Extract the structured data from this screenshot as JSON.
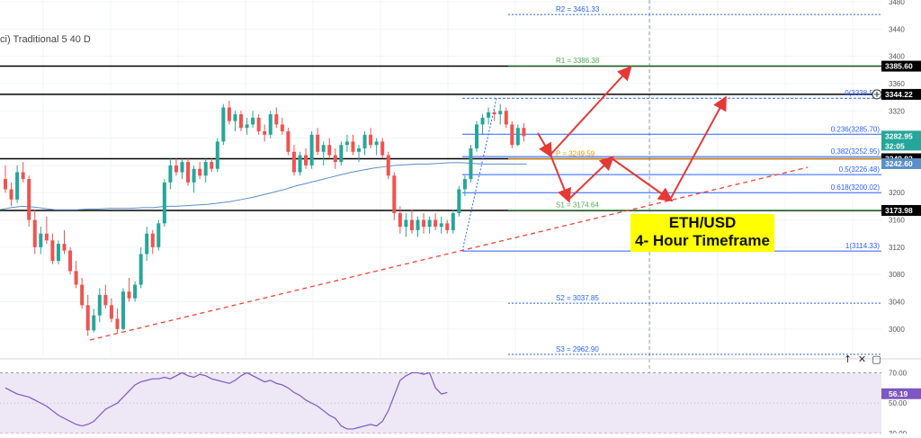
{
  "header": {
    "title_partial": "ci) Traditional 5 40 D"
  },
  "annotation": {
    "line1": "ETH/USD",
    "line2": "4- Hour Timeframe"
  },
  "colors": {
    "bull": "#26a69a",
    "bear": "#ef5350",
    "pivot_r": "#2962ff",
    "pivot_green": "#4caf50",
    "fib": "#2962ff",
    "trend": "#f44336",
    "rsi": "#7e57c2",
    "rsi_bg": "#ede7f6",
    "ma": "#5b8fc7",
    "hline": "#000000"
  },
  "controls": {
    "up_label": "↑",
    "close_label": "✕",
    "collapse_label": "▢"
  },
  "chart_data": {
    "type": "candlestick",
    "y_axis": {
      "range": [
        2980,
        3480
      ],
      "ticks": [
        3000,
        3040,
        3080,
        3120,
        3160,
        3200,
        3240,
        3280,
        3320,
        3360,
        3400,
        3440,
        3480
      ]
    },
    "price_tags": [
      {
        "label": "3385.60",
        "value": 3385.6,
        "color": "#000000"
      },
      {
        "label": "3344.22",
        "value": 3344.22,
        "color": "#000000"
      },
      {
        "label": "3282.95",
        "value": 3282.95,
        "color": "#26a69a",
        "sub": "32:05"
      },
      {
        "label": "3249.83",
        "value": 3249.83,
        "color": "#000000"
      },
      {
        "label": "3242.60",
        "value": 3242.6,
        "color": "#5b8fc7"
      },
      {
        "label": "3173.98",
        "value": 3173.98,
        "color": "#000000"
      }
    ],
    "pivot_levels": [
      {
        "label": "R2 = 3461.33",
        "value": 3461.33,
        "color": "#2962ff",
        "dashed": true
      },
      {
        "label": "R1 = 3386.38",
        "value": 3386.38,
        "color": "#4caf50",
        "dashed": false
      },
      {
        "label": "P = 3249.59",
        "value": 3249.59,
        "color": "#ff9800",
        "dashed": false
      },
      {
        "label": "S1 = 3174.64",
        "value": 3174.64,
        "color": "#4caf50",
        "dashed": false
      },
      {
        "label": "S2 = 3037.85",
        "value": 3037.85,
        "color": "#2962ff",
        "dashed": true
      },
      {
        "label": "S3 = 2962.90",
        "value": 2962.9,
        "color": "#2962ff",
        "dashed": true
      }
    ],
    "fib_levels": [
      {
        "label": "0(3338.53)",
        "value": 3338.53
      },
      {
        "label": "0.236(3285.70)",
        "value": 3285.7
      },
      {
        "label": "0.382(3252.95)",
        "value": 3252.95
      },
      {
        "label": "0.5(3226.48)",
        "value": 3226.48
      },
      {
        "label": "0.618(3200.02)",
        "value": 3200.02
      },
      {
        "label": "1(3114.33)",
        "value": 3114.33
      }
    ],
    "horizontal_lines": [
      3385.6,
      3344.22,
      3249.83,
      3173.98
    ],
    "candles": [
      [
        3220,
        3240,
        3200,
        3205
      ],
      [
        3205,
        3215,
        3180,
        3190
      ],
      [
        3190,
        3240,
        3185,
        3230
      ],
      [
        3230,
        3245,
        3215,
        3220
      ],
      [
        3220,
        3225,
        3150,
        3160
      ],
      [
        3160,
        3175,
        3110,
        3120
      ],
      [
        3120,
        3150,
        3110,
        3140
      ],
      [
        3140,
        3165,
        3125,
        3130
      ],
      [
        3130,
        3140,
        3095,
        3100
      ],
      [
        3100,
        3130,
        3095,
        3125
      ],
      [
        3125,
        3145,
        3110,
        3115
      ],
      [
        3115,
        3120,
        3080,
        3085
      ],
      [
        3085,
        3100,
        3060,
        3065
      ],
      [
        3065,
        3075,
        3030,
        3035
      ],
      [
        3035,
        3050,
        2990,
        2998
      ],
      [
        2998,
        3030,
        2995,
        3020
      ],
      [
        3020,
        3060,
        3010,
        3050
      ],
      [
        3050,
        3065,
        3030,
        3035
      ],
      [
        3035,
        3045,
        3010,
        3015
      ],
      [
        3015,
        3030,
        2995,
        3000
      ],
      [
        3000,
        3060,
        2998,
        3055
      ],
      [
        3055,
        3075,
        3040,
        3045
      ],
      [
        3045,
        3070,
        3040,
        3065
      ],
      [
        3065,
        3120,
        3060,
        3110
      ],
      [
        3110,
        3150,
        3100,
        3140
      ],
      [
        3140,
        3145,
        3110,
        3120
      ],
      [
        3120,
        3160,
        3115,
        3155
      ],
      [
        3155,
        3220,
        3150,
        3215
      ],
      [
        3215,
        3250,
        3205,
        3240
      ],
      [
        3240,
        3250,
        3225,
        3230
      ],
      [
        3230,
        3250,
        3220,
        3245
      ],
      [
        3245,
        3250,
        3210,
        3215
      ],
      [
        3215,
        3240,
        3200,
        3235
      ],
      [
        3235,
        3245,
        3220,
        3225
      ],
      [
        3225,
        3250,
        3215,
        3245
      ],
      [
        3245,
        3250,
        3230,
        3235
      ],
      [
        3235,
        3280,
        3230,
        3275
      ],
      [
        3275,
        3330,
        3270,
        3325
      ],
      [
        3325,
        3335,
        3300,
        3305
      ],
      [
        3305,
        3320,
        3290,
        3315
      ],
      [
        3315,
        3320,
        3290,
        3295
      ],
      [
        3295,
        3310,
        3285,
        3300
      ],
      [
        3300,
        3320,
        3295,
        3310
      ],
      [
        3310,
        3315,
        3285,
        3290
      ],
      [
        3290,
        3300,
        3275,
        3285
      ],
      [
        3285,
        3320,
        3280,
        3315
      ],
      [
        3315,
        3325,
        3295,
        3300
      ],
      [
        3300,
        3310,
        3285,
        3290
      ],
      [
        3290,
        3295,
        3255,
        3260
      ],
      [
        3260,
        3270,
        3225,
        3230
      ],
      [
        3230,
        3260,
        3225,
        3255
      ],
      [
        3255,
        3265,
        3235,
        3240
      ],
      [
        3240,
        3290,
        3235,
        3285
      ],
      [
        3285,
        3295,
        3255,
        3260
      ],
      [
        3260,
        3275,
        3240,
        3270
      ],
      [
        3270,
        3280,
        3250,
        3255
      ],
      [
        3255,
        3265,
        3235,
        3245
      ],
      [
        3245,
        3275,
        3240,
        3270
      ],
      [
        3270,
        3285,
        3260,
        3275
      ],
      [
        3275,
        3285,
        3255,
        3260
      ],
      [
        3260,
        3270,
        3245,
        3265
      ],
      [
        3265,
        3290,
        3255,
        3285
      ],
      [
        3285,
        3295,
        3265,
        3270
      ],
      [
        3270,
        3280,
        3255,
        3275
      ],
      [
        3275,
        3280,
        3250,
        3255
      ],
      [
        3255,
        3260,
        3220,
        3225
      ],
      [
        3225,
        3230,
        3160,
        3170
      ],
      [
        3170,
        3180,
        3140,
        3150
      ],
      [
        3150,
        3170,
        3135,
        3160
      ],
      [
        3160,
        3175,
        3140,
        3145
      ],
      [
        3145,
        3165,
        3135,
        3160
      ],
      [
        3160,
        3170,
        3140,
        3150
      ],
      [
        3150,
        3165,
        3140,
        3160
      ],
      [
        3160,
        3170,
        3145,
        3150
      ],
      [
        3150,
        3165,
        3140,
        3155
      ],
      [
        3155,
        3160,
        3140,
        3145
      ],
      [
        3145,
        3175,
        3140,
        3170
      ],
      [
        3170,
        3210,
        3165,
        3205
      ],
      [
        3205,
        3225,
        3195,
        3220
      ],
      [
        3220,
        3270,
        3215,
        3265
      ],
      [
        3265,
        3305,
        3260,
        3300
      ],
      [
        3300,
        3315,
        3285,
        3310
      ],
      [
        3310,
        3325,
        3300,
        3318
      ],
      [
        3318,
        3322,
        3305,
        3315
      ],
      [
        3315,
        3330,
        3300,
        3320
      ],
      [
        3320,
        3325,
        3295,
        3300
      ],
      [
        3300,
        3305,
        3265,
        3270
      ],
      [
        3270,
        3300,
        3268,
        3295
      ],
      [
        3295,
        3302,
        3275,
        3283
      ]
    ],
    "moving_average": [
      3175,
      3178,
      3180,
      3179,
      3177,
      3175,
      3175,
      3175,
      3176,
      3176,
      3177,
      3177,
      3177,
      3178,
      3178,
      3180,
      3180,
      3181,
      3182,
      3183,
      3185,
      3187,
      3190,
      3193,
      3197,
      3201,
      3205,
      3210,
      3214,
      3218,
      3222,
      3226,
      3230,
      3233,
      3236,
      3238,
      3240,
      3241,
      3242,
      3242,
      3243,
      3244,
      3244,
      3243,
      3242,
      3242,
      3242,
      3242,
      3242
    ],
    "arrows": [
      {
        "from": [
          0,
          3282
        ],
        "to": [
          1,
          3249
        ]
      },
      {
        "from": [
          1,
          3249
        ],
        "to": [
          2,
          3385
        ]
      },
      {
        "from": [
          1,
          3249
        ],
        "to": [
          3,
          3195
        ]
      },
      {
        "from": [
          3,
          3195
        ],
        "to": [
          4,
          3249
        ]
      },
      {
        "from": [
          4,
          3249
        ],
        "to": [
          5,
          3197
        ]
      },
      {
        "from": [
          5,
          3197
        ],
        "to": [
          6,
          3338
        ]
      }
    ],
    "rsi": {
      "ticks": [
        30,
        50,
        70
      ],
      "range": [
        30,
        75
      ],
      "values": [
        60,
        58,
        56,
        55,
        54,
        52,
        50,
        48,
        45,
        42,
        40,
        38,
        36,
        35,
        36,
        38,
        42,
        46,
        48,
        50,
        54,
        58,
        62,
        64,
        65,
        66,
        66,
        67,
        66,
        68,
        70,
        68,
        67,
        69,
        68,
        66,
        65,
        64,
        63,
        65,
        68,
        70,
        68,
        66,
        64,
        65,
        63,
        62,
        60,
        57,
        55,
        52,
        50,
        48,
        45,
        42,
        40,
        35,
        33,
        33,
        34,
        35,
        36,
        35,
        38,
        45,
        55,
        65,
        68,
        70,
        70,
        69,
        70,
        60,
        56,
        57
      ],
      "current": 56.19,
      "current_label": "56.19"
    }
  }
}
